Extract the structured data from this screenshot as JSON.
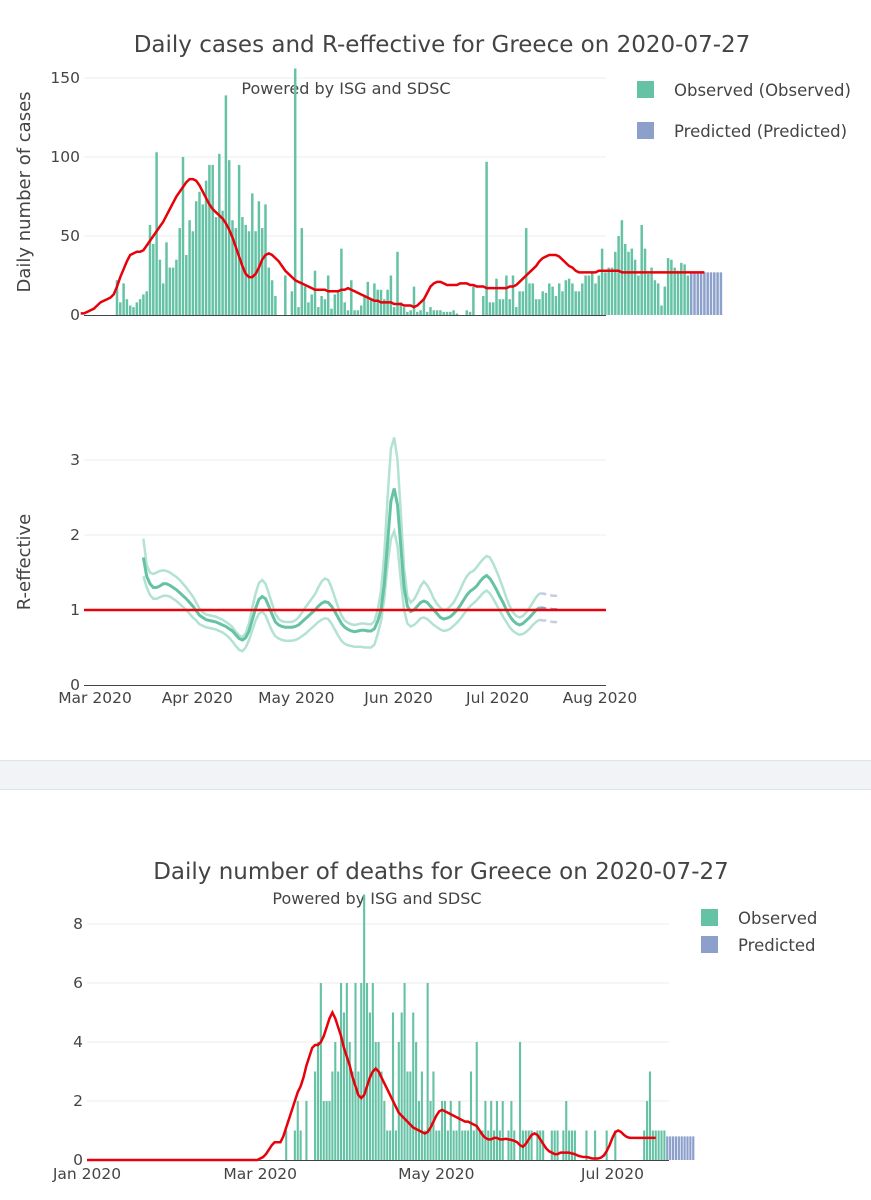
{
  "colors": {
    "observed": "#66c2a5",
    "predicted": "#8da0cb",
    "fit": "#e8000b",
    "band": "#b2e2d2"
  },
  "chart_data": [
    {
      "type": "bar",
      "title": "Daily cases and R-effective for Greece on 2020-07-27",
      "subtitle": "Powered by ISG and SDSC",
      "ylabel": "Daily number of cases",
      "ylim": [
        0,
        150
      ],
      "yticks": [
        "0",
        "50",
        "100",
        "150"
      ],
      "x_start": "2020-02-29",
      "legend": [
        {
          "label": "Observed (Observed)"
        },
        {
          "label": "Predicted (Predicted)"
        }
      ],
      "observed": [
        0,
        0,
        0,
        0,
        0,
        0,
        0,
        0,
        0,
        0,
        0,
        22,
        8,
        20,
        10,
        6,
        5,
        8,
        10,
        13,
        15,
        57,
        45,
        103,
        35,
        20,
        46,
        30,
        30,
        35,
        55,
        100,
        38,
        60,
        53,
        72,
        78,
        70,
        85,
        95,
        95,
        62,
        102,
        66,
        139,
        98,
        60,
        55,
        95,
        62,
        57,
        53,
        77,
        53,
        72,
        55,
        70,
        30,
        22,
        12,
        0,
        0,
        25,
        0,
        15,
        156,
        5,
        55,
        18,
        8,
        13,
        28,
        5,
        12,
        10,
        25,
        4,
        13,
        15,
        42,
        8,
        3,
        22,
        3,
        3,
        6,
        12,
        21,
        10,
        20,
        16,
        16,
        10,
        16,
        25,
        5,
        40,
        8,
        5,
        2,
        3,
        18,
        2,
        3,
        10,
        2,
        5,
        3,
        3,
        3,
        2,
        2,
        2,
        3,
        1,
        0,
        0,
        3,
        2,
        18,
        0,
        0,
        12,
        97,
        8,
        8,
        23,
        10,
        10,
        25,
        10,
        25,
        5,
        15,
        15,
        55,
        20,
        20,
        10,
        10,
        15,
        14,
        20,
        18,
        12,
        20,
        15,
        22,
        23,
        20,
        15,
        15,
        20,
        25,
        25,
        27,
        20,
        25,
        42,
        27,
        30,
        30,
        40,
        50,
        60,
        45,
        40,
        42,
        35,
        25,
        57,
        42,
        26,
        30,
        22,
        20,
        6,
        18,
        36,
        35,
        30,
        28,
        33,
        32,
        25
      ],
      "predicted": [
        27,
        27,
        27,
        27,
        27,
        27,
        27,
        27,
        27,
        27
      ],
      "fit": [
        1,
        1,
        2,
        3,
        4,
        6,
        8,
        9,
        10,
        11,
        13,
        18,
        24,
        29,
        34,
        38,
        39,
        40,
        40,
        41,
        44,
        47,
        50,
        53,
        56,
        59,
        63,
        67,
        71,
        75,
        78,
        81,
        84,
        86,
        86,
        85,
        82,
        78,
        74,
        70,
        67,
        65,
        63,
        61,
        58,
        54,
        49,
        43,
        37,
        31,
        26,
        24,
        24,
        26,
        30,
        35,
        38,
        39,
        38,
        36,
        34,
        31,
        28,
        26,
        24,
        22,
        21,
        20,
        19,
        18,
        17,
        16,
        16,
        16,
        16,
        15,
        15,
        15,
        15,
        16,
        16,
        17,
        16,
        15,
        14,
        13,
        12,
        11,
        10,
        9,
        9,
        8,
        8,
        8,
        8,
        7,
        7,
        7,
        6,
        6,
        6,
        5,
        6,
        8,
        10,
        14,
        18,
        20,
        21,
        21,
        20,
        19,
        19,
        19,
        19,
        20,
        20,
        20,
        19,
        19,
        18,
        18,
        18,
        17,
        17,
        17,
        17,
        17,
        17,
        17,
        18,
        18,
        19,
        21,
        23,
        25,
        27,
        29,
        31,
        34,
        36,
        37,
        38,
        38,
        38,
        37,
        35,
        33,
        31,
        30,
        28,
        27,
        27,
        27,
        27,
        27,
        27,
        28,
        28,
        28,
        28,
        28,
        28,
        28,
        27,
        27,
        27,
        27,
        27,
        27,
        27,
        27,
        27,
        27,
        27,
        27,
        27,
        27,
        27,
        27,
        27,
        27,
        27,
        27,
        27,
        27,
        27,
        27,
        27,
        27
      ]
    },
    {
      "type": "line",
      "ylabel": "R-effective",
      "ylim": [
        0,
        3.5
      ],
      "yticks": [
        "0",
        "1",
        "2",
        "3"
      ],
      "xticks": [
        "Mar 2020",
        "Apr 2020",
        "May 2020",
        "Jun 2020",
        "Jul 2020",
        "Aug 2020"
      ],
      "reference_line": 1,
      "r_start": "2020-03-19",
      "r_mean": [
        1.7,
        1.45,
        1.35,
        1.3,
        1.3,
        1.32,
        1.35,
        1.35,
        1.33,
        1.3,
        1.27,
        1.23,
        1.19,
        1.15,
        1.1,
        1.05,
        0.99,
        0.93,
        0.9,
        0.87,
        0.86,
        0.85,
        0.84,
        0.82,
        0.8,
        0.78,
        0.75,
        0.72,
        0.67,
        0.62,
        0.6,
        0.63,
        0.72,
        0.87,
        1.02,
        1.14,
        1.18,
        1.15,
        1.05,
        0.94,
        0.84,
        0.8,
        0.78,
        0.77,
        0.77,
        0.77,
        0.78,
        0.8,
        0.84,
        0.88,
        0.92,
        0.96,
        1.0,
        1.05,
        1.09,
        1.11,
        1.1,
        1.05,
        0.98,
        0.9,
        0.82,
        0.77,
        0.74,
        0.72,
        0.71,
        0.72,
        0.73,
        0.73,
        0.72,
        0.72,
        0.75,
        0.85,
        1.0,
        1.35,
        1.9,
        2.45,
        2.62,
        2.4,
        1.85,
        1.3,
        1.05,
        0.98,
        1.0,
        1.05,
        1.1,
        1.12,
        1.1,
        1.05,
        1.0,
        0.95,
        0.9,
        0.88,
        0.89,
        0.91,
        0.95,
        1.0,
        1.06,
        1.13,
        1.2,
        1.25,
        1.28,
        1.32,
        1.38,
        1.43,
        1.46,
        1.42,
        1.35,
        1.27,
        1.18,
        1.1,
        1.0,
        0.92,
        0.86,
        0.82,
        0.8,
        0.82,
        0.86,
        0.9,
        0.95,
        1.0,
        1.03
      ],
      "r_upper": [
        1.95,
        1.6,
        1.5,
        1.48,
        1.5,
        1.52,
        1.53,
        1.52,
        1.5,
        1.47,
        1.44,
        1.4,
        1.35,
        1.3,
        1.24,
        1.18,
        1.1,
        1.02,
        0.97,
        0.94,
        0.93,
        0.92,
        0.91,
        0.89,
        0.87,
        0.84,
        0.81,
        0.77,
        0.71,
        0.66,
        0.64,
        0.69,
        0.82,
        1.03,
        1.22,
        1.36,
        1.4,
        1.35,
        1.22,
        1.08,
        0.95,
        0.88,
        0.85,
        0.84,
        0.84,
        0.84,
        0.86,
        0.9,
        0.96,
        1.03,
        1.09,
        1.15,
        1.21,
        1.3,
        1.38,
        1.42,
        1.4,
        1.3,
        1.17,
        1.04,
        0.93,
        0.86,
        0.83,
        0.81,
        0.8,
        0.81,
        0.82,
        0.82,
        0.81,
        0.81,
        0.85,
        1.0,
        1.25,
        1.75,
        2.5,
        3.15,
        3.3,
        3.0,
        2.3,
        1.55,
        1.18,
        1.1,
        1.14,
        1.22,
        1.32,
        1.38,
        1.33,
        1.25,
        1.15,
        1.08,
        1.03,
        1.0,
        1.01,
        1.05,
        1.1,
        1.18,
        1.27,
        1.37,
        1.45,
        1.5,
        1.52,
        1.57,
        1.63,
        1.68,
        1.72,
        1.7,
        1.62,
        1.52,
        1.41,
        1.29,
        1.16,
        1.05,
        0.97,
        0.92,
        0.9,
        0.92,
        0.97,
        1.03,
        1.1,
        1.17,
        1.22
      ],
      "r_lower": [
        1.45,
        1.3,
        1.2,
        1.15,
        1.15,
        1.17,
        1.19,
        1.19,
        1.18,
        1.15,
        1.12,
        1.08,
        1.04,
        1.0,
        0.95,
        0.9,
        0.86,
        0.81,
        0.79,
        0.77,
        0.76,
        0.75,
        0.74,
        0.72,
        0.7,
        0.67,
        0.63,
        0.58,
        0.52,
        0.47,
        0.45,
        0.5,
        0.6,
        0.73,
        0.86,
        0.95,
        0.98,
        0.93,
        0.82,
        0.72,
        0.65,
        0.62,
        0.6,
        0.59,
        0.59,
        0.59,
        0.6,
        0.62,
        0.65,
        0.68,
        0.72,
        0.76,
        0.8,
        0.84,
        0.87,
        0.89,
        0.88,
        0.82,
        0.74,
        0.66,
        0.59,
        0.55,
        0.53,
        0.52,
        0.51,
        0.51,
        0.51,
        0.5,
        0.5,
        0.5,
        0.54,
        0.68,
        0.85,
        1.15,
        1.6,
        1.95,
        2.05,
        1.85,
        1.4,
        1.0,
        0.82,
        0.78,
        0.8,
        0.84,
        0.89,
        0.9,
        0.88,
        0.84,
        0.8,
        0.77,
        0.74,
        0.72,
        0.73,
        0.75,
        0.79,
        0.83,
        0.88,
        0.94,
        1.0,
        1.05,
        1.09,
        1.13,
        1.18,
        1.23,
        1.26,
        1.22,
        1.15,
        1.07,
        0.99,
        0.91,
        0.84,
        0.77,
        0.72,
        0.69,
        0.67,
        0.68,
        0.71,
        0.75,
        0.8,
        0.84,
        0.87
      ],
      "r_pred_mean": [
        1.03,
        1.03,
        1.02,
        1.02,
        1.01,
        1.01,
        1.0
      ],
      "r_pred_upper": [
        1.22,
        1.22,
        1.21,
        1.2,
        1.19,
        1.19,
        1.18
      ],
      "r_pred_lower": [
        0.87,
        0.86,
        0.86,
        0.85,
        0.84,
        0.84,
        0.83
      ]
    },
    {
      "type": "bar",
      "title": "Daily number of deaths for Greece on 2020-07-27",
      "subtitle": "Powered by ISG and SDSC",
      "ylim": [
        0,
        9
      ],
      "yticks": [
        "0",
        "2",
        "4",
        "6",
        "8"
      ],
      "xticks": [
        "Jan 2020",
        "Mar 2020",
        "May 2020",
        "Jul 2020"
      ],
      "x_start": "2020-03-10",
      "legend": [
        {
          "label": "Observed"
        },
        {
          "label": "Predicted"
        }
      ],
      "observed": [
        1,
        0,
        0,
        1,
        2,
        1,
        0,
        2,
        0,
        0,
        3,
        4,
        6,
        2,
        2,
        2,
        3,
        4,
        3,
        6,
        5,
        6,
        4,
        3,
        6,
        3,
        6,
        9,
        6,
        5,
        6,
        4,
        4,
        3,
        2,
        1,
        1,
        5,
        1,
        4,
        5,
        6,
        3,
        3,
        5,
        4,
        2,
        3,
        1,
        6,
        2,
        3,
        1,
        1,
        2,
        2,
        1,
        2,
        1,
        1,
        2,
        1,
        1,
        1,
        3,
        1,
        4,
        1,
        1,
        2,
        1,
        2,
        1,
        2,
        1,
        2,
        0,
        1,
        2,
        1,
        0,
        4,
        1,
        1,
        1,
        1,
        0,
        1,
        1,
        1,
        0,
        0,
        1,
        1,
        1,
        0,
        1,
        2,
        1,
        1,
        1,
        0,
        0,
        0,
        1,
        0,
        0,
        1,
        0,
        0,
        0,
        1,
        0,
        0,
        1,
        0,
        0,
        0,
        0,
        0,
        0,
        0,
        0,
        0,
        1,
        2,
        3,
        1,
        1,
        1,
        1,
        1
      ],
      "predicted": [
        0.8,
        0.8,
        0.8,
        0.8,
        0.8,
        0.8,
        0.8,
        0.8,
        0.8,
        0.8
      ],
      "fit": [
        0,
        0,
        0,
        0,
        0,
        0,
        0,
        0,
        0,
        0,
        0,
        0,
        0,
        0,
        0,
        0,
        0,
        0,
        0,
        0,
        0,
        0,
        0,
        0,
        0,
        0,
        0,
        0,
        0,
        0,
        0,
        0,
        0,
        0,
        0,
        0,
        0,
        0,
        0,
        0,
        0,
        0,
        0,
        0,
        0,
        0,
        0,
        0,
        0,
        0,
        0,
        0,
        0,
        0,
        0,
        0,
        0,
        0,
        0,
        0,
        0.05,
        0.1,
        0.2,
        0.35,
        0.5,
        0.6,
        0.6,
        0.6,
        0.8,
        1.1,
        1.4,
        1.7,
        2.0,
        2.3,
        2.5,
        2.8,
        3.2,
        3.5,
        3.8,
        3.9,
        3.9,
        4.0,
        4.2,
        4.5,
        4.8,
        5.0,
        4.8,
        4.5,
        4.2,
        3.8,
        3.5,
        3.2,
        2.8,
        2.5,
        2.2,
        2.1,
        2.2,
        2.5,
        2.8,
        3.0,
        3.1,
        3.0,
        2.8,
        2.6,
        2.4,
        2.2,
        2.0,
        1.8,
        1.6,
        1.5,
        1.4,
        1.3,
        1.2,
        1.1,
        1.05,
        1.0,
        0.95,
        0.9,
        0.95,
        1.1,
        1.3,
        1.5,
        1.65,
        1.7,
        1.65,
        1.6,
        1.55,
        1.5,
        1.45,
        1.4,
        1.35,
        1.3,
        1.3,
        1.25,
        1.2,
        1.15,
        1.0,
        0.85,
        0.75,
        0.7,
        0.7,
        0.75,
        0.75,
        0.7,
        0.7,
        0.72,
        0.7,
        0.68,
        0.65,
        0.6,
        0.5,
        0.45,
        0.55,
        0.7,
        0.85,
        0.9,
        0.85,
        0.7,
        0.55,
        0.4,
        0.3,
        0.25,
        0.2,
        0.2,
        0.25,
        0.25,
        0.25,
        0.25,
        0.22,
        0.2,
        0.15,
        0.12,
        0.1,
        0.1,
        0.08,
        0.05,
        0.05,
        0.05,
        0.08,
        0.15,
        0.3,
        0.5,
        0.75,
        0.95,
        1.0,
        0.95,
        0.85,
        0.78,
        0.75,
        0.75,
        0.75,
        0.75,
        0.75,
        0.75,
        0.75,
        0.75,
        0.75,
        0.75
      ]
    }
  ]
}
